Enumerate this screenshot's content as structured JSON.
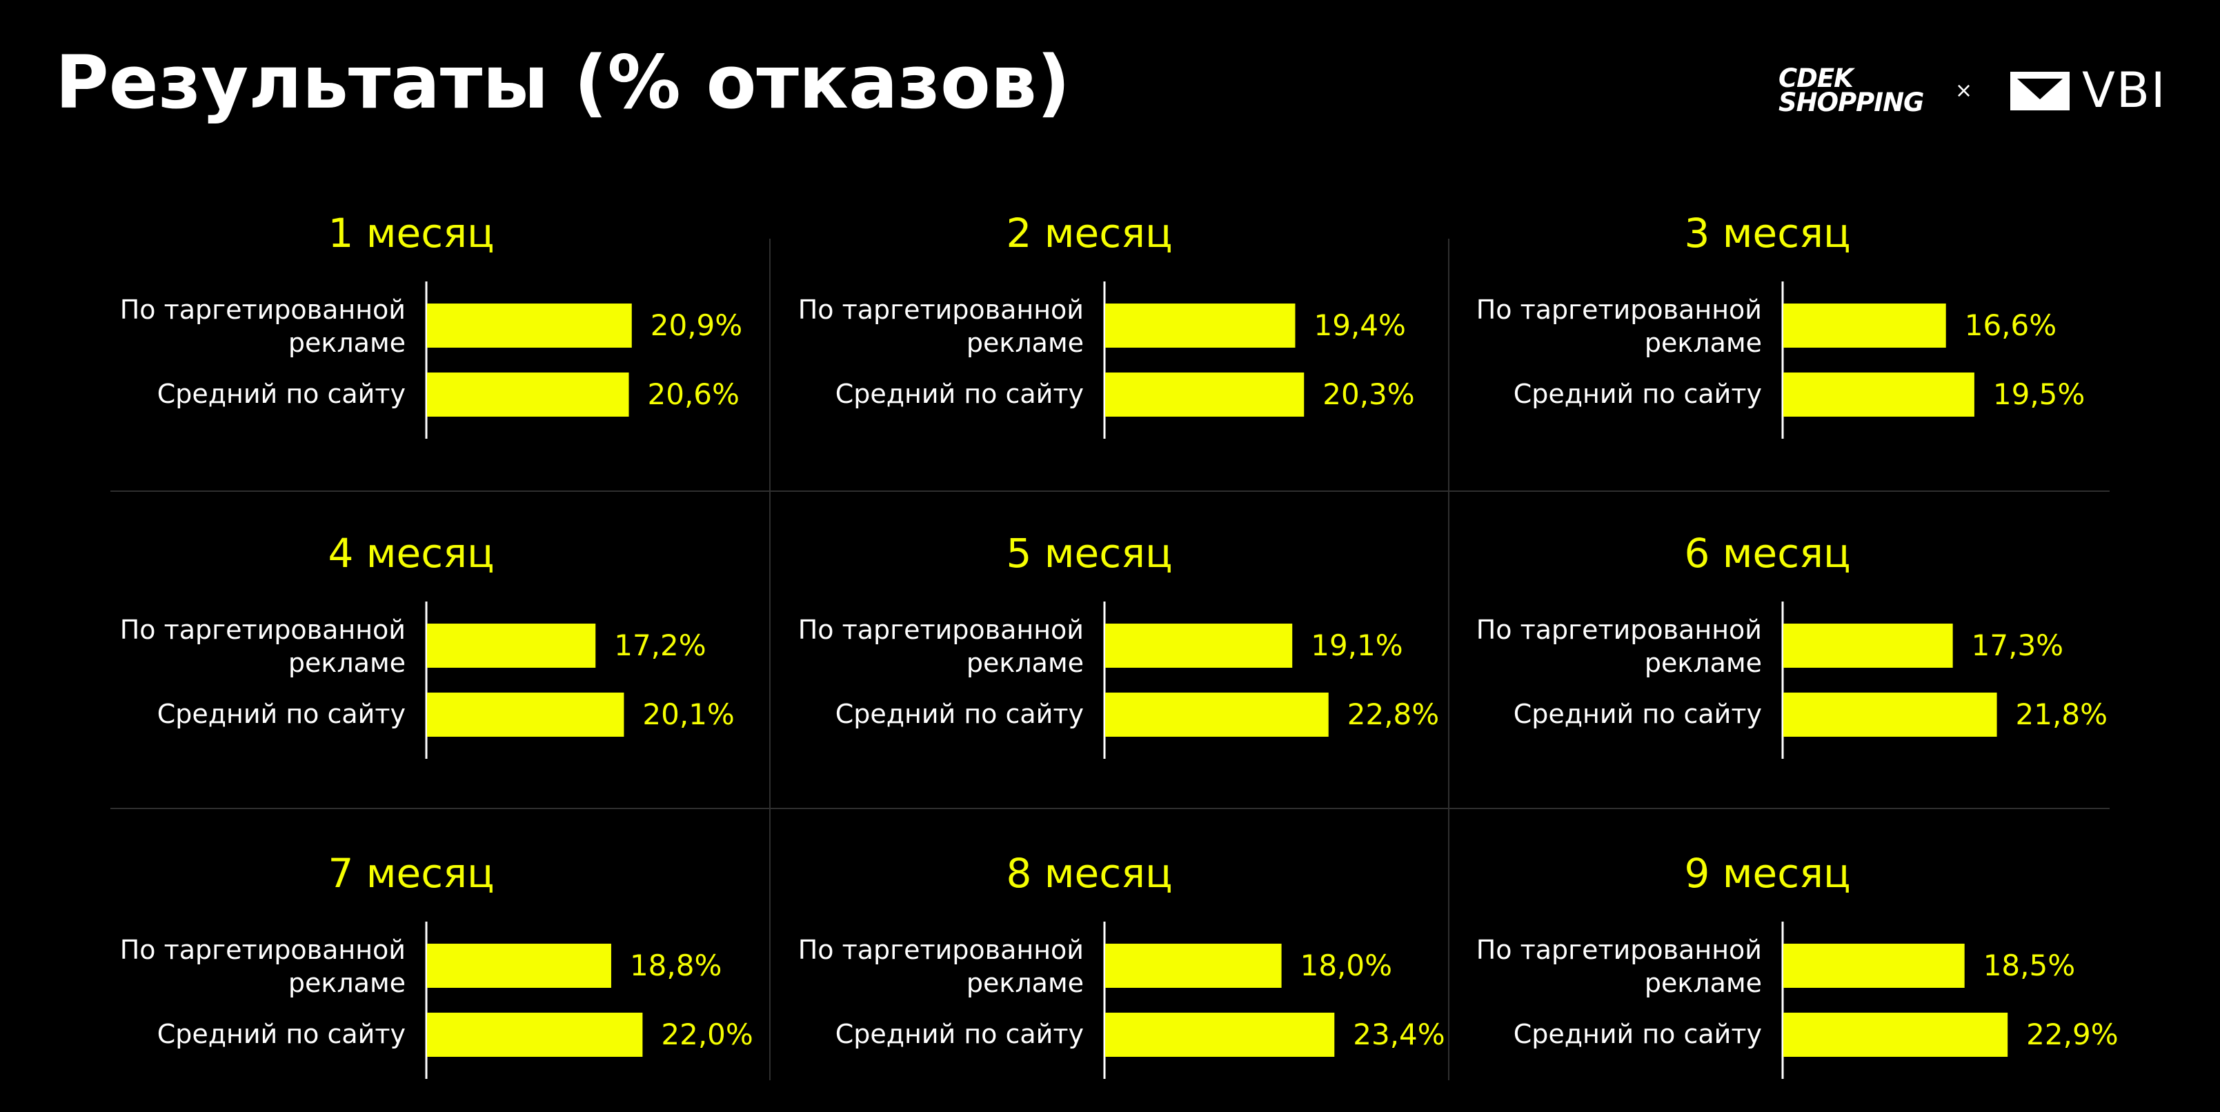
{
  "title": "Результаты (% отказов)",
  "logos": {
    "cdek_line1": "CDEK",
    "cdek_line2": "SHOPPING",
    "separator": "×",
    "vbi": "VBI"
  },
  "colors": {
    "background": "#000000",
    "accent": "#f6ff00",
    "text": "#ffffff",
    "divider": "#2f2f2f"
  },
  "chart_data": [
    {
      "type": "bar",
      "orientation": "horizontal",
      "title": "1 месяц",
      "categories": [
        "По таргетированной рекламе",
        "Средний по сайту"
      ],
      "values": [
        20.9,
        20.6
      ],
      "value_labels": [
        "20,9%",
        "20,6%"
      ]
    },
    {
      "type": "bar",
      "orientation": "horizontal",
      "title": "2 месяц",
      "categories": [
        "По таргетированной рекламе",
        "Средний по сайту"
      ],
      "values": [
        19.4,
        20.3
      ],
      "value_labels": [
        "19,4%",
        "20,3%"
      ]
    },
    {
      "type": "bar",
      "orientation": "horizontal",
      "title": "3 месяц",
      "categories": [
        "По таргетированной рекламе",
        "Средний по сайту"
      ],
      "values": [
        16.6,
        19.5
      ],
      "value_labels": [
        "16,6%",
        "19,5%"
      ]
    },
    {
      "type": "bar",
      "orientation": "horizontal",
      "title": "4 месяц",
      "categories": [
        "По таргетированной рекламе",
        "Средний по сайту"
      ],
      "values": [
        17.2,
        20.1
      ],
      "value_labels": [
        "17,2%",
        "20,1%"
      ]
    },
    {
      "type": "bar",
      "orientation": "horizontal",
      "title": "5 месяц",
      "categories": [
        "По таргетированной рекламе",
        "Средний по сайту"
      ],
      "values": [
        19.1,
        22.8
      ],
      "value_labels": [
        "19,1%",
        "22,8%"
      ]
    },
    {
      "type": "bar",
      "orientation": "horizontal",
      "title": "6 месяц",
      "categories": [
        "По таргетированной рекламе",
        "Средний по сайту"
      ],
      "values": [
        17.3,
        21.8
      ],
      "value_labels": [
        "17,3%",
        "21,8%"
      ]
    },
    {
      "type": "bar",
      "orientation": "horizontal",
      "title": "7 месяц",
      "categories": [
        "По таргетированной рекламе",
        "Средний по сайту"
      ],
      "values": [
        18.8,
        22.0
      ],
      "value_labels": [
        "18,8%",
        "22,0%"
      ]
    },
    {
      "type": "bar",
      "orientation": "horizontal",
      "title": "8 месяц",
      "categories": [
        "По таргетированной рекламе",
        "Средний по сайту"
      ],
      "values": [
        18.0,
        23.4
      ],
      "value_labels": [
        "18,0%",
        "23,4%"
      ]
    },
    {
      "type": "bar",
      "orientation": "horizontal",
      "title": "9 месяц",
      "categories": [
        "По таргетированной рекламе",
        "Средний по сайту"
      ],
      "values": [
        18.5,
        22.9
      ],
      "value_labels": [
        "18,5%",
        "22,9%"
      ]
    }
  ]
}
